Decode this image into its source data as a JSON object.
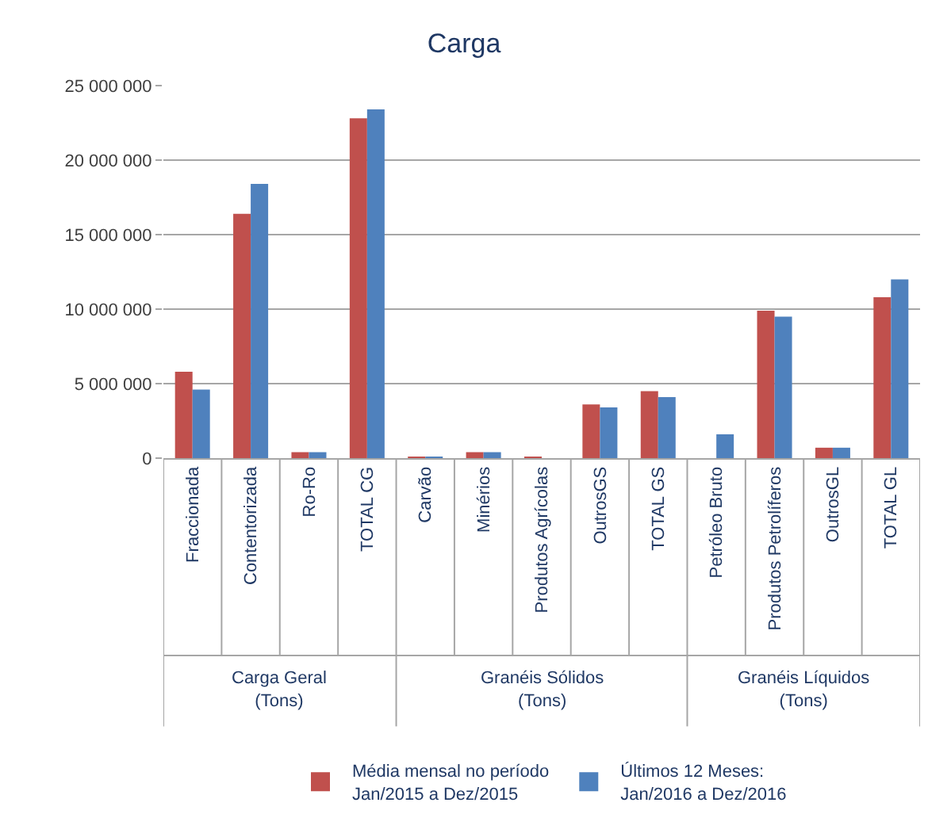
{
  "chart_data": {
    "type": "bar",
    "title": "Carga",
    "categories": [
      "Fraccionada",
      "Contentorizada",
      "Ro-Ro",
      "TOTAL CG",
      "Carvão",
      "Minérios",
      "Produtos Agrícolas",
      "OutrosGS",
      "TOTAL GS",
      "Petróleo Bruto",
      "Produtos Petrolíferos",
      "OutrosGL",
      "TOTAL GL"
    ],
    "series": [
      {
        "name": "Média mensal no período\nJan/2015 a Dez/2015",
        "color": "#c0504d",
        "values": [
          5800000,
          16400000,
          400000,
          22800000,
          100000,
          400000,
          100000,
          3600000,
          4500000,
          null,
          9900000,
          700000,
          10800000
        ]
      },
      {
        "name": "Últimos 12 Meses:\nJan/2016 a Dez/2016",
        "color": "#4f81bd",
        "values": [
          4600000,
          18400000,
          400000,
          23400000,
          100000,
          400000,
          null,
          3400000,
          4100000,
          1600000,
          9500000,
          700000,
          12000000
        ]
      }
    ],
    "ylim": [
      0,
      25000000
    ],
    "yticks": [
      {
        "value": 0,
        "label": "0"
      },
      {
        "value": 5000000,
        "label": "5 000 000"
      },
      {
        "value": 10000000,
        "label": "10 000 000"
      },
      {
        "value": 15000000,
        "label": "15 000 000"
      },
      {
        "value": 20000000,
        "label": "20 000 000"
      },
      {
        "value": 25000000,
        "label": "25 000 000"
      }
    ],
    "grid": "y",
    "legend": "bottom",
    "annotations": [
      "Carga Geral\n(Tons)",
      "Granéis Sólidos\n(Tons)",
      "Granéis Líquidos\n(Tons)"
    ]
  }
}
